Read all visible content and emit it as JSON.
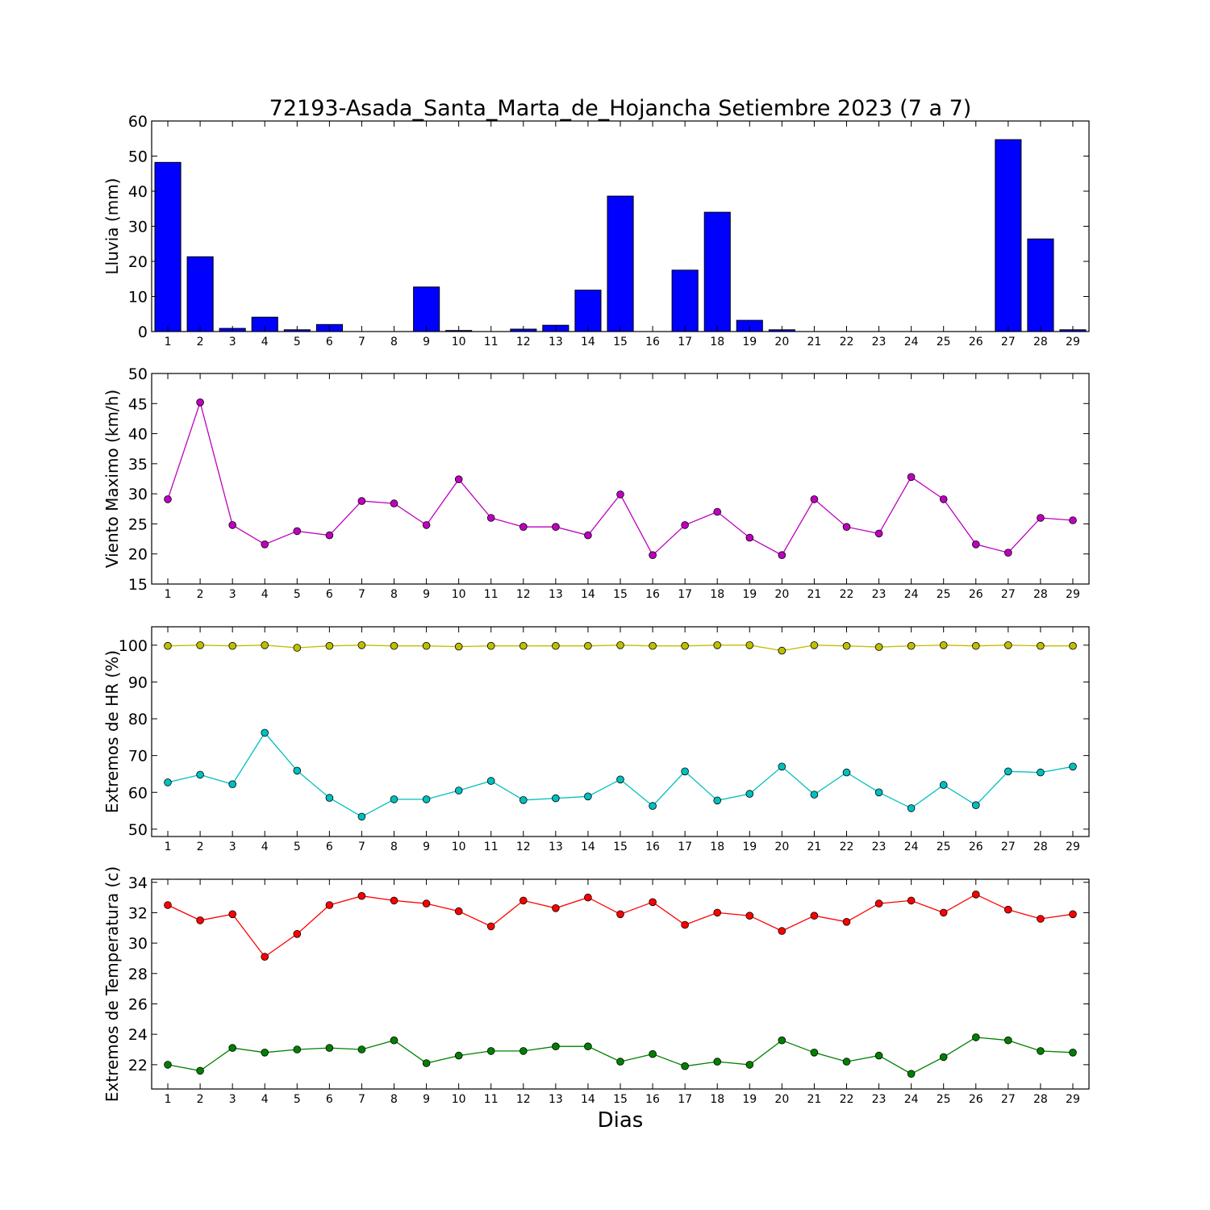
{
  "figure": {
    "title": "72193-Asada_Santa_Marta_de_Hojancha Setiembre 2023  (7 a 7)",
    "xlabel": "Dias"
  },
  "chart_data": [
    {
      "type": "bar",
      "ylabel": "Lluvia (mm)",
      "ylim": [
        0,
        60
      ],
      "yticks": [
        0,
        10,
        20,
        30,
        40,
        50,
        60
      ],
      "categories": [
        1,
        2,
        3,
        4,
        5,
        6,
        7,
        8,
        9,
        10,
        11,
        12,
        13,
        14,
        15,
        16,
        17,
        18,
        19,
        20,
        21,
        22,
        23,
        24,
        25,
        26,
        27,
        28,
        29
      ],
      "series": [
        {
          "color": "#0000ff",
          "values": [
            48.2,
            21.3,
            0.9,
            4.1,
            0.5,
            2.0,
            0,
            0,
            12.7,
            0.3,
            0,
            0.7,
            1.8,
            11.8,
            38.6,
            0,
            17.5,
            34.0,
            3.2,
            0.5,
            0,
            0,
            0,
            0,
            0,
            0,
            54.7,
            26.4,
            0.5
          ]
        }
      ]
    },
    {
      "type": "line",
      "ylabel": "Viento Maximo (km/h)",
      "ylim": [
        15,
        50
      ],
      "yticks": [
        15,
        20,
        25,
        30,
        35,
        40,
        45,
        50
      ],
      "categories": [
        1,
        2,
        3,
        4,
        5,
        6,
        7,
        8,
        9,
        10,
        11,
        12,
        13,
        14,
        15,
        16,
        17,
        18,
        19,
        20,
        21,
        22,
        23,
        24,
        25,
        26,
        27,
        28,
        29
      ],
      "series": [
        {
          "color": "#bf00bf",
          "values": [
            29.1,
            45.2,
            24.8,
            21.6,
            23.8,
            23.1,
            28.8,
            28.4,
            24.8,
            32.4,
            26.0,
            24.5,
            24.5,
            23.1,
            29.9,
            19.8,
            24.8,
            27.0,
            22.7,
            19.8,
            29.1,
            24.5,
            23.4,
            32.8,
            29.1,
            21.6,
            20.2,
            26.0,
            25.6
          ]
        }
      ]
    },
    {
      "type": "line",
      "ylabel": "Extremos de HR (%)",
      "ylim": [
        48,
        105
      ],
      "yticks": [
        50,
        60,
        70,
        80,
        90,
        100
      ],
      "categories": [
        1,
        2,
        3,
        4,
        5,
        6,
        7,
        8,
        9,
        10,
        11,
        12,
        13,
        14,
        15,
        16,
        17,
        18,
        19,
        20,
        21,
        22,
        23,
        24,
        25,
        26,
        27,
        28,
        29
      ],
      "series": [
        {
          "color": "#bfbf00",
          "values": [
            99.8,
            100,
            99.8,
            100,
            99.3,
            99.8,
            100,
            99.8,
            99.8,
            99.6,
            99.8,
            99.8,
            99.8,
            99.8,
            100,
            99.8,
            99.8,
            100,
            100,
            98.5,
            100,
            99.8,
            99.5,
            99.8,
            100,
            99.8,
            100,
            99.8,
            99.8
          ]
        },
        {
          "color": "#00bfbf",
          "values": [
            62.7,
            64.8,
            62.2,
            76.2,
            65.9,
            58.5,
            53.4,
            58.1,
            58.1,
            60.5,
            63.1,
            57.9,
            58.4,
            58.9,
            63.5,
            56.3,
            65.7,
            57.8,
            59.6,
            67.0,
            59.4,
            65.4,
            60.0,
            55.7,
            62.0,
            56.5,
            65.7,
            65.4,
            67.0
          ]
        }
      ]
    },
    {
      "type": "line",
      "ylabel": "Extremos de Temperatura (c)",
      "ylim": [
        20.4,
        34.2
      ],
      "yticks": [
        22,
        24,
        26,
        28,
        30,
        32,
        34
      ],
      "categories": [
        1,
        2,
        3,
        4,
        5,
        6,
        7,
        8,
        9,
        10,
        11,
        12,
        13,
        14,
        15,
        16,
        17,
        18,
        19,
        20,
        21,
        22,
        23,
        24,
        25,
        26,
        27,
        28,
        29
      ],
      "series": [
        {
          "color": "#ff0000",
          "values": [
            32.5,
            31.5,
            31.9,
            29.1,
            30.6,
            32.5,
            33.1,
            32.8,
            32.6,
            32.1,
            31.1,
            32.8,
            32.3,
            33.0,
            31.9,
            32.7,
            31.2,
            32.0,
            31.8,
            30.8,
            31.8,
            31.4,
            32.6,
            32.8,
            32.0,
            33.2,
            32.2,
            31.6,
            31.9
          ]
        },
        {
          "color": "#008000",
          "values": [
            22.0,
            21.6,
            23.1,
            22.8,
            23.0,
            23.1,
            23.0,
            23.6,
            22.1,
            22.6,
            22.9,
            22.9,
            23.2,
            23.2,
            22.2,
            22.7,
            21.9,
            22.2,
            22.0,
            23.6,
            22.8,
            22.2,
            22.6,
            21.4,
            22.5,
            23.8,
            23.6,
            22.9,
            22.8
          ]
        }
      ]
    }
  ]
}
